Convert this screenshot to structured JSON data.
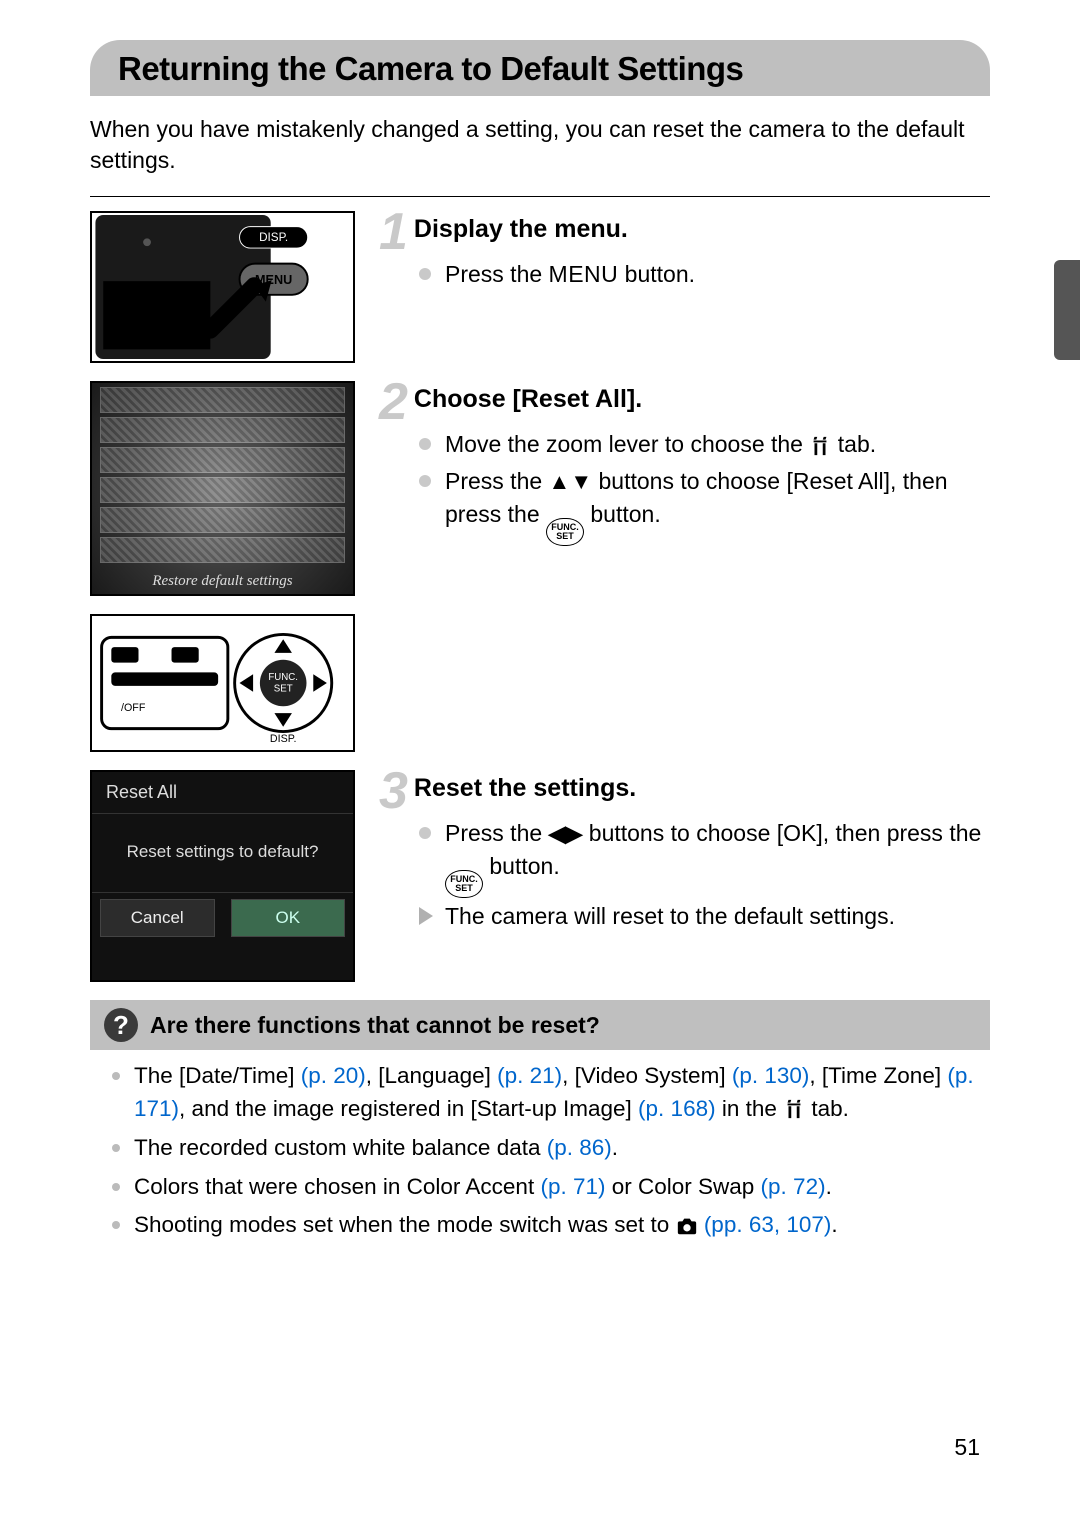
{
  "page_number": "51",
  "title": "Returning the Camera to Default Settings",
  "intro": "When you have mistakenly changed a setting, you can reset the camera to the default settings.",
  "steps": [
    {
      "num": "1",
      "title": "Display the menu.",
      "items": [
        {
          "type": "dot",
          "html": "Press the <span class='menu-word'>MENU</span> button."
        }
      ]
    },
    {
      "num": "2",
      "title": "Choose [Reset All].",
      "items": [
        {
          "type": "dot",
          "html": "Move the zoom lever to choose the <span class='inline-icon tools-icon'><svg viewBox='0 0 24 24'><path fill='#000' d='M6 2l-1 3h3l1-3zM16 2l-1 3h3l1-3zM5 6h14v2H5zM6 9h3v13H6zM15 9h3v13h-3z'/></svg></span> tab."
        },
        {
          "type": "dot",
          "html": "Press the <span class='arrows-ud'>▲▼</span> buttons to choose [Reset All], then press the <span class='func-btn'><span>FUNC.</span><span>SET</span></span> button."
        }
      ]
    },
    {
      "num": "3",
      "title": "Reset the settings.",
      "items": [
        {
          "type": "dot",
          "html": "Press the <span class='arrows-lr'>◀▶</span> buttons to choose [OK], then press the <span class='func-btn'><span>FUNC.</span><span>SET</span></span> button."
        },
        {
          "type": "arrow",
          "html": "The camera will reset to the default settings."
        }
      ]
    }
  ],
  "menu_caption": "Restore default settings",
  "dialog": {
    "title": "Reset All",
    "message": "Reset settings to default?",
    "cancel": "Cancel",
    "ok": "OK"
  },
  "qa_title": "Are there functions that cannot be reset?",
  "qa_items": [
    "The [Date/Time] <span class='link'>(p. 20)</span>, [Language] <span class='link'>(p. 21)</span>, [Video System] <span class='link'>(p. 130)</span>, [Time Zone] <span class='link'>(p. 171)</span>, and the image registered in [Start-up Image] <span class='link'>(p. 168)</span> in the <span class='inline-icon tools-icon'><svg viewBox='0 0 24 24'><path fill='#000' d='M6 2l-1 3h3l1-3zM16 2l-1 3h3l1-3zM5 6h14v2H5zM6 9h3v13H6zM15 9h3v13h-3z'/></svg></span> tab.",
    "The recorded custom white balance data <span class='link'>(p. 86)</span>.",
    "Colors that were chosen in Color Accent <span class='link'>(p. 71)</span> or Color Swap <span class='link'>(p. 72)</span>.",
    "Shooting modes set when the mode switch was set to <span class='inline-icon camera-icon'><svg viewBox='0 0 24 24'><path fill='#000' d='M4 7h3l2-3h6l2 3h3a2 2 0 012 2v10a2 2 0 01-2 2H4a2 2 0 01-2-2V9a2 2 0 012-2zm8 3a4 4 0 100 8 4 4 0 000-8z'/></svg></span> <span class='link'>(pp. 63, 107)</span>."
  ]
}
